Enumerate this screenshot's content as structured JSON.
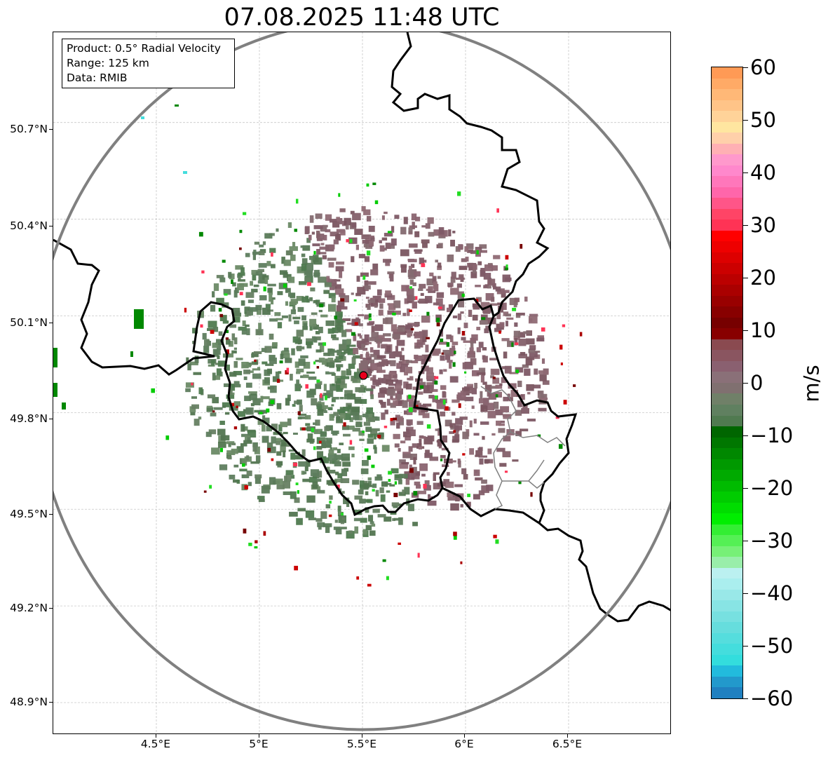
{
  "title": "07.08.2025 11:48 UTC",
  "info_box": {
    "product": "Product: 0.5° Radial Velocity",
    "range": "Range: 125 km",
    "data": "Data: RMIB"
  },
  "axes": {
    "lat_ticks": [
      "50.7°N",
      "50.4°N",
      "50.1°N",
      "49.8°N",
      "49.5°N",
      "49.2°N",
      "48.9°N"
    ],
    "lon_ticks": [
      "4.5°E",
      "5°E",
      "5.5°E",
      "6°E",
      "6.5°E"
    ],
    "lat_range": [
      48.8,
      50.98
    ],
    "lon_range": [
      4.0,
      7.0
    ],
    "grid": true
  },
  "radar": {
    "site_lon": 5.505,
    "site_lat": 49.915,
    "range_ring_color": "#808080",
    "site_marker_color": "#e8001c"
  },
  "colorbar": {
    "unit": "m/s",
    "min": -60,
    "max": 60,
    "ticks": [
      "60",
      "50",
      "40",
      "30",
      "20",
      "10",
      "0",
      "−10",
      "−20",
      "−30",
      "−40",
      "−50",
      "−60"
    ],
    "colors_top_to_bottom": [
      "#ff9a55",
      "#ffaa66",
      "#ffb877",
      "#ffc488",
      "#ffd399",
      "#ffe6a0",
      "#ffd0aa",
      "#ffb0b4",
      "#ff99cc",
      "#ff88cc",
      "#ff77bb",
      "#ff66aa",
      "#ff5588",
      "#ff4466",
      "#ff3355",
      "#ff0000",
      "#ee0000",
      "#dd0000",
      "#cc0000",
      "#bb0000",
      "#aa0000",
      "#990000",
      "#880000",
      "#770000",
      "#880000",
      "#8a4a50",
      "#8a5560",
      "#8a6070",
      "#8a7078",
      "#807070",
      "#708068",
      "#608060",
      "#507a50",
      "#006600",
      "#007700",
      "#008800",
      "#009900",
      "#00aa00",
      "#00bb00",
      "#00cc00",
      "#00dd00",
      "#00ee00",
      "#33ee33",
      "#55f055",
      "#77f077",
      "#99eeaa",
      "#bbf0f0",
      "#aaeeee",
      "#99e8e8",
      "#88e4e4",
      "#77e0e0",
      "#66dddd",
      "#55dddd",
      "#44dddd",
      "#33dddd",
      "#22bbdd",
      "#2299cc",
      "#2080c0"
    ]
  },
  "colors": {
    "inbound_green": "#5e7d5e",
    "outbound_mauve": "#8a6470",
    "border": "#000000",
    "subregion_border": "#808080"
  }
}
